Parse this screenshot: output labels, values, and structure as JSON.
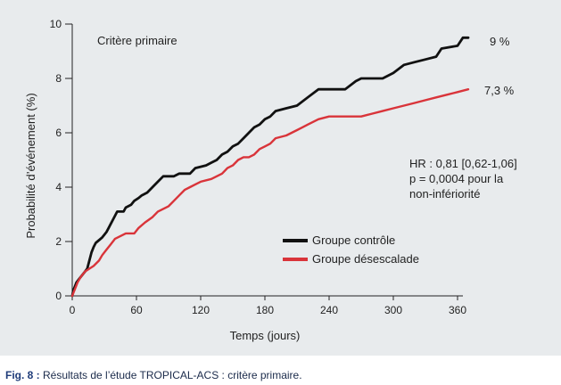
{
  "figure": {
    "caption_label": "Fig. 8 :",
    "caption_text": " Résultats de l’étude TROPICAL-ACS : critère primaire."
  },
  "chart_data": {
    "type": "line",
    "title": "Critère primaire",
    "xlabel": "Temps (jours)",
    "ylabel": "Probabilité d’événement (%)",
    "xlim": [
      0,
      360
    ],
    "ylim": [
      0,
      10
    ],
    "x_ticks": [
      "0",
      "60",
      "120",
      "180",
      "240",
      "300",
      "360"
    ],
    "y_ticks": [
      "0",
      "2",
      "4",
      "6",
      "8",
      "10"
    ],
    "grid": false,
    "legend_position": "middle-right",
    "series": [
      {
        "name": "Groupe contrôle",
        "color": "#111111",
        "end_label": "9 %",
        "points": [
          [
            0,
            0
          ],
          [
            1,
            0.2
          ],
          [
            2,
            0.3
          ],
          [
            4,
            0.5
          ],
          [
            6,
            0.6
          ],
          [
            8,
            0.7
          ],
          [
            10,
            0.8
          ],
          [
            12,
            0.9
          ],
          [
            14,
            1.0
          ],
          [
            16,
            1.3
          ],
          [
            18,
            1.6
          ],
          [
            20,
            1.8
          ],
          [
            22,
            1.95
          ],
          [
            25,
            2.05
          ],
          [
            28,
            2.15
          ],
          [
            30,
            2.25
          ],
          [
            32,
            2.35
          ],
          [
            34,
            2.5
          ],
          [
            36,
            2.65
          ],
          [
            38,
            2.8
          ],
          [
            40,
            2.95
          ],
          [
            42,
            3.1
          ],
          [
            48,
            3.1
          ],
          [
            50,
            3.25
          ],
          [
            55,
            3.35
          ],
          [
            58,
            3.5
          ],
          [
            62,
            3.6
          ],
          [
            65,
            3.7
          ],
          [
            70,
            3.8
          ],
          [
            75,
            4.0
          ],
          [
            80,
            4.2
          ],
          [
            85,
            4.4
          ],
          [
            95,
            4.4
          ],
          [
            100,
            4.5
          ],
          [
            110,
            4.5
          ],
          [
            115,
            4.7
          ],
          [
            125,
            4.8
          ],
          [
            130,
            4.9
          ],
          [
            135,
            5.0
          ],
          [
            140,
            5.2
          ],
          [
            145,
            5.3
          ],
          [
            150,
            5.5
          ],
          [
            155,
            5.6
          ],
          [
            160,
            5.8
          ],
          [
            165,
            6.0
          ],
          [
            170,
            6.2
          ],
          [
            175,
            6.3
          ],
          [
            180,
            6.5
          ],
          [
            185,
            6.6
          ],
          [
            190,
            6.8
          ],
          [
            200,
            6.9
          ],
          [
            210,
            7.0
          ],
          [
            220,
            7.3
          ],
          [
            230,
            7.6
          ],
          [
            255,
            7.6
          ],
          [
            265,
            7.9
          ],
          [
            270,
            8.0
          ],
          [
            290,
            8.0
          ],
          [
            300,
            8.2
          ],
          [
            310,
            8.5
          ],
          [
            320,
            8.6
          ],
          [
            330,
            8.7
          ],
          [
            340,
            8.8
          ],
          [
            345,
            9.1
          ],
          [
            360,
            9.2
          ],
          [
            365,
            9.5
          ],
          [
            370,
            9.5
          ]
        ]
      },
      {
        "name": "Groupe désescalade",
        "color": "#d9343a",
        "end_label": "7,3 %",
        "points": [
          [
            0,
            0
          ],
          [
            1,
            0.1
          ],
          [
            3,
            0.3
          ],
          [
            5,
            0.5
          ],
          [
            8,
            0.7
          ],
          [
            12,
            0.9
          ],
          [
            16,
            1.0
          ],
          [
            20,
            1.1
          ],
          [
            25,
            1.3
          ],
          [
            28,
            1.5
          ],
          [
            32,
            1.7
          ],
          [
            36,
            1.9
          ],
          [
            40,
            2.1
          ],
          [
            45,
            2.2
          ],
          [
            50,
            2.3
          ],
          [
            58,
            2.3
          ],
          [
            62,
            2.5
          ],
          [
            68,
            2.7
          ],
          [
            75,
            2.9
          ],
          [
            80,
            3.1
          ],
          [
            85,
            3.2
          ],
          [
            90,
            3.3
          ],
          [
            95,
            3.5
          ],
          [
            100,
            3.7
          ],
          [
            105,
            3.9
          ],
          [
            110,
            4.0
          ],
          [
            115,
            4.1
          ],
          [
            120,
            4.2
          ],
          [
            130,
            4.3
          ],
          [
            135,
            4.4
          ],
          [
            140,
            4.5
          ],
          [
            145,
            4.7
          ],
          [
            150,
            4.8
          ],
          [
            155,
            5.0
          ],
          [
            160,
            5.1
          ],
          [
            165,
            5.1
          ],
          [
            170,
            5.2
          ],
          [
            175,
            5.4
          ],
          [
            180,
            5.5
          ],
          [
            185,
            5.6
          ],
          [
            190,
            5.8
          ],
          [
            200,
            5.9
          ],
          [
            205,
            6.0
          ],
          [
            210,
            6.1
          ],
          [
            215,
            6.2
          ],
          [
            220,
            6.3
          ],
          [
            225,
            6.4
          ],
          [
            230,
            6.5
          ],
          [
            240,
            6.6
          ],
          [
            250,
            6.6
          ],
          [
            260,
            6.6
          ],
          [
            270,
            6.6
          ],
          [
            280,
            6.7
          ],
          [
            290,
            6.8
          ],
          [
            300,
            6.9
          ],
          [
            310,
            7.0
          ],
          [
            320,
            7.1
          ],
          [
            330,
            7.2
          ],
          [
            340,
            7.3
          ],
          [
            350,
            7.4
          ],
          [
            360,
            7.5
          ],
          [
            370,
            7.6
          ]
        ]
      }
    ],
    "annotations": [
      "HR : 0,81 [0,62-1,06]",
      "p = 0,0004 pour la",
      "non-infériorité"
    ]
  }
}
